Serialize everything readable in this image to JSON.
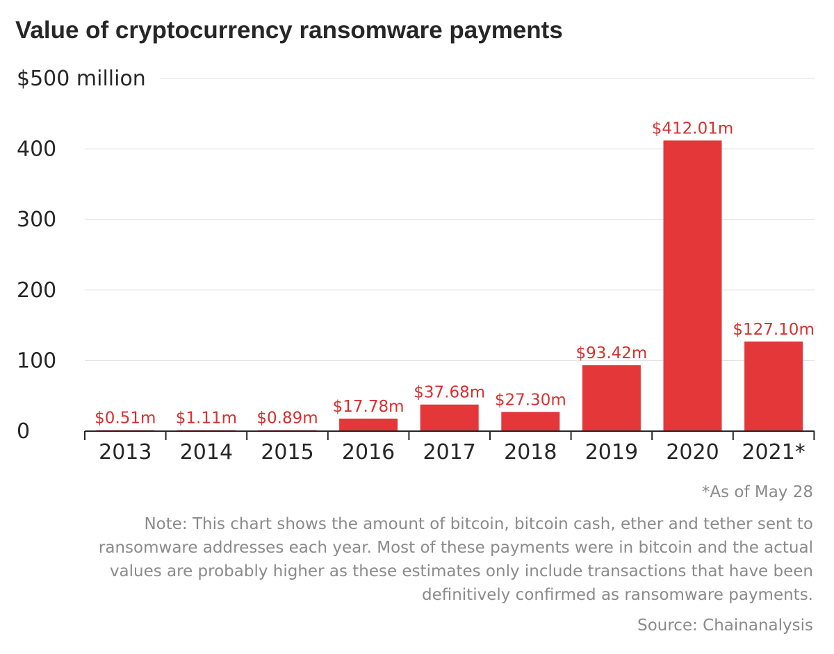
{
  "title": "Value of cryptocurrency ransomware payments",
  "footnote": "*As of May 28",
  "note": "Note: This chart shows the amount of bitcoin, bitcoin cash, ether and tether sent to ransomware addresses each year. Most of these payments were in bitcoin and the actual values are probably higher as these estimates only include transactions that have been definitively confirmed as ransomware payments.",
  "source": "Source: Chainanalysis",
  "colors": {
    "bar": "#e3373a",
    "label": "#d8302f",
    "grid": "#dddddd",
    "axis": "#262626",
    "text": "#262626",
    "footer": "#8a8a8a"
  },
  "chart_data": {
    "type": "bar",
    "title": "Value of cryptocurrency ransomware payments",
    "categories": [
      "2013",
      "2014",
      "2015",
      "2016",
      "2017",
      "2018",
      "2019",
      "2020",
      "2021*"
    ],
    "values": [
      0.51,
      1.11,
      0.89,
      17.78,
      37.68,
      27.3,
      93.42,
      412.01,
      127.1
    ],
    "data_labels": [
      "$0.51m",
      "$1.11m",
      "$0.89m",
      "$17.78m",
      "$37.68m",
      "$27.30m",
      "$93.42m",
      "$412.01m",
      "$127.10m"
    ],
    "yticks": [
      0,
      100,
      200,
      300,
      400,
      500
    ],
    "ytick_labels": [
      "0",
      "100",
      "200",
      "300",
      "400",
      "$500 million"
    ],
    "ylim": [
      0,
      500
    ],
    "ylabel": "",
    "xlabel": "",
    "grid": true,
    "legend": "none"
  }
}
